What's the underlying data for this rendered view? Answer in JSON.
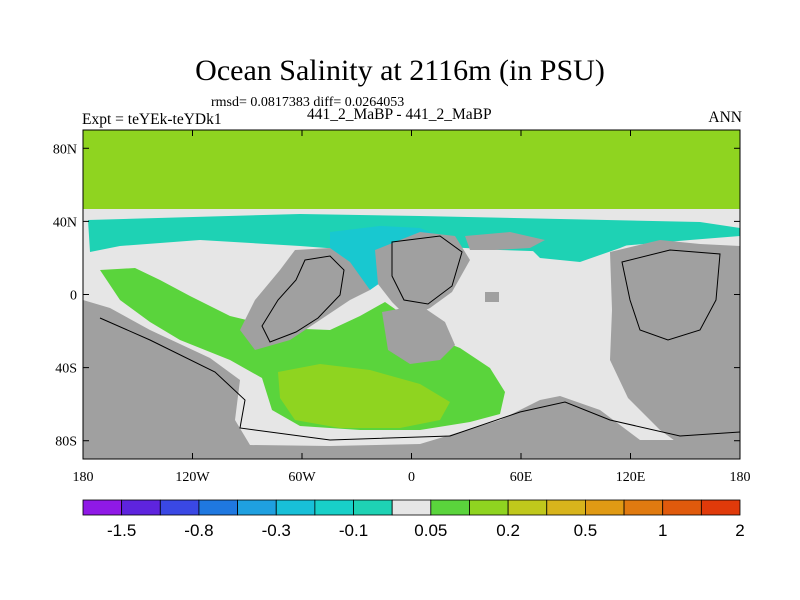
{
  "title": "Ocean Salinity at 2116m (in PSU)",
  "subtitle": "rmsd= 0.0817383 diff= 0.0264053",
  "left_label": "Expt = teYEk-teYDk1",
  "center_label": "441_2_MaBP - 441_2_MaBP",
  "right_label": "ANN",
  "colors": {
    "land": "#a0a0a0",
    "coastline": "#000000",
    "near_zero": "#e6e6e6",
    "positive_low": "#5ad43c",
    "positive_mid": "#8fd420",
    "negative_low": "#1ed2b4",
    "negative_mid": "#18c8d0"
  },
  "chart_data": {
    "type": "heatmap",
    "title": "Ocean Salinity at 2116m (in PSU)",
    "variable": "salinity difference",
    "units": "PSU",
    "x_axis": {
      "range": [
        -180,
        180
      ],
      "ticks": [
        {
          "value": -180,
          "label": "180"
        },
        {
          "value": -120,
          "label": "120W"
        },
        {
          "value": -60,
          "label": "60W"
        },
        {
          "value": 0,
          "label": "0"
        },
        {
          "value": 60,
          "label": "60E"
        },
        {
          "value": 120,
          "label": "120E"
        },
        {
          "value": 180,
          "label": "180"
        }
      ]
    },
    "y_axis": {
      "range": [
        -90,
        90
      ],
      "ticks": [
        {
          "value": 80,
          "label": "80N"
        },
        {
          "value": 40,
          "label": "40N"
        },
        {
          "value": 0,
          "label": "0"
        },
        {
          "value": -40,
          "label": "40S"
        },
        {
          "value": -80,
          "label": "80S"
        }
      ]
    },
    "regions": [
      {
        "name": "northern-band",
        "lon": [
          -180,
          180
        ],
        "lat": [
          48,
          90
        ],
        "class": "positive_mid"
      },
      {
        "name": "north-ocean-band",
        "lon": [
          -180,
          180
        ],
        "lat": [
          40,
          48
        ],
        "class": "near_zero"
      },
      {
        "name": "north-negative-band",
        "lon": [
          -170,
          130
        ],
        "lat": [
          25,
          42
        ],
        "class": "negative_low"
      },
      {
        "name": "atlantic-negative-lobe",
        "lon": [
          -20,
          20
        ],
        "lat": [
          18,
          35
        ],
        "class": "negative_mid"
      },
      {
        "name": "south-pacific-positive",
        "lon": [
          -170,
          -30
        ],
        "lat": [
          -55,
          20
        ],
        "class": "positive_low"
      },
      {
        "name": "southern-positive-core",
        "lon": [
          -70,
          15
        ],
        "lat": [
          -70,
          -40
        ],
        "class": "positive_mid"
      },
      {
        "name": "south-atlantic-positive",
        "lon": [
          -40,
          20
        ],
        "lat": [
          -45,
          -5
        ],
        "class": "positive_low"
      }
    ],
    "colorbar": {
      "colors": [
        "#8f19e6",
        "#5e24de",
        "#3a48e4",
        "#1f78e0",
        "#1fa0e0",
        "#18c0d8",
        "#18d0c8",
        "#1ed2b4",
        "#e6e6e6",
        "#5ad43c",
        "#8fd420",
        "#c0c81c",
        "#d8b41c",
        "#e09a14",
        "#e07a10",
        "#e05a0c",
        "#e03a0a"
      ],
      "labels": [
        {
          "boundary": 1,
          "label": "-1.5"
        },
        {
          "boundary": 3,
          "label": "-0.8"
        },
        {
          "boundary": 5,
          "label": "-0.3"
        },
        {
          "boundary": 7,
          "label": "-0.1"
        },
        {
          "boundary": 9,
          "label": "0.05"
        },
        {
          "boundary": 11,
          "label": "0.2"
        },
        {
          "boundary": 13,
          "label": "0.5"
        },
        {
          "boundary": 15,
          "label": "1"
        },
        {
          "boundary": 17,
          "label": "2"
        }
      ]
    }
  }
}
